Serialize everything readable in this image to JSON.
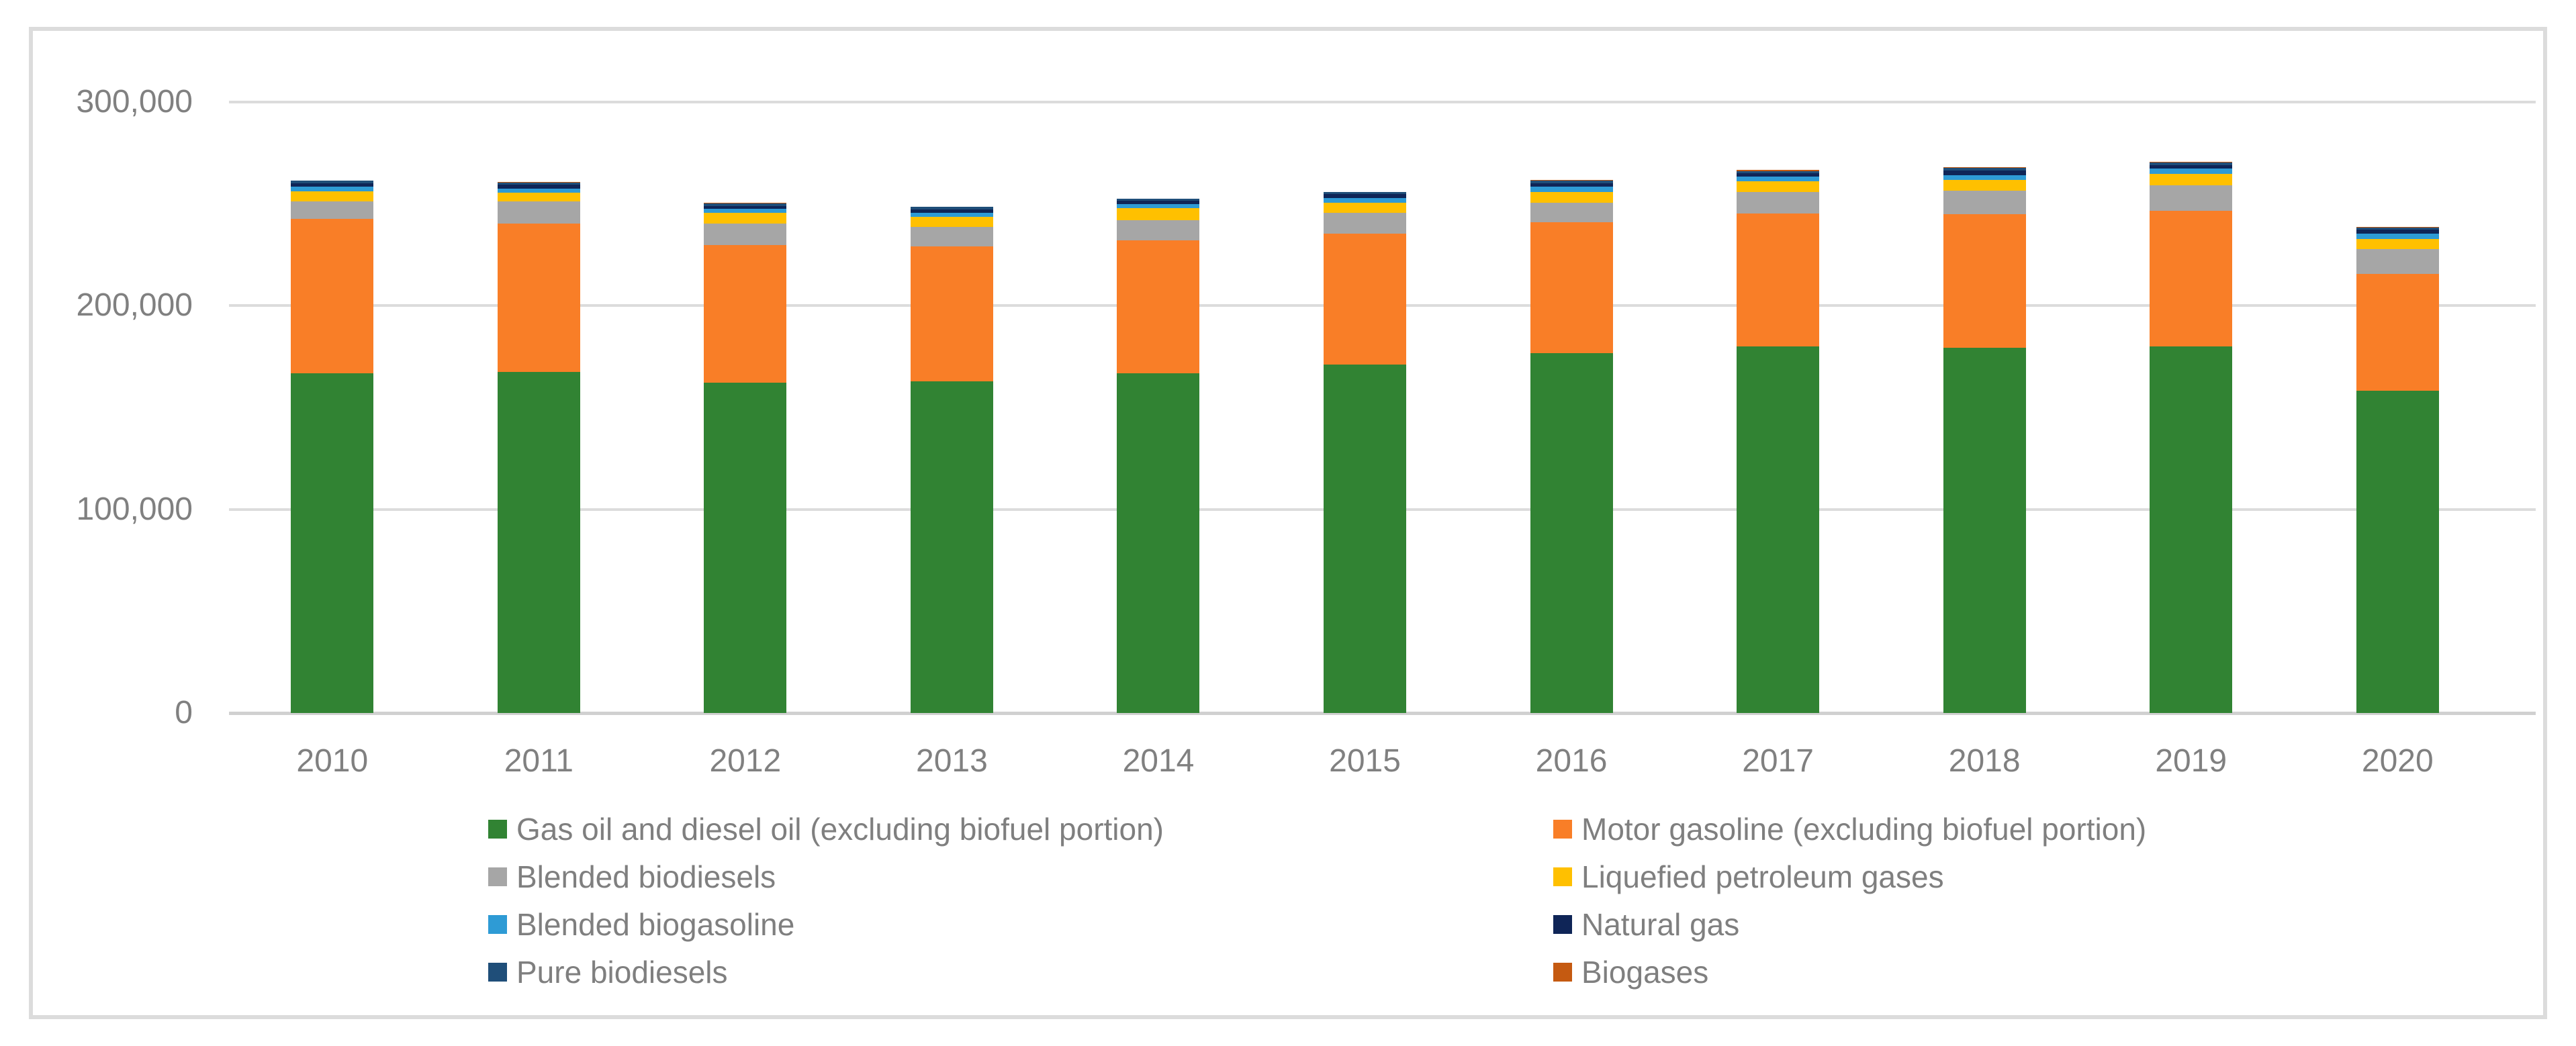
{
  "chart_data": {
    "type": "bar",
    "stacked": true,
    "title": "",
    "xlabel": "",
    "ylabel": "",
    "ylim": [
      0,
      300000
    ],
    "grid": true,
    "legend_position": "bottom-two-columns",
    "y_ticks": [
      {
        "label": "0",
        "value": 0
      },
      {
        "label": "100,000",
        "value": 100000
      },
      {
        "label": "200,000",
        "value": 200000
      },
      {
        "label": "300,000",
        "value": 300000
      }
    ],
    "categories": [
      "2010",
      "2011",
      "2012",
      "2013",
      "2014",
      "2015",
      "2016",
      "2017",
      "2018",
      "2019",
      "2020"
    ],
    "series": [
      {
        "name": "Gas oil and diesel oil (excluding biofuel portion)",
        "color": "#318333",
        "values": [
          166800,
          167500,
          162200,
          162700,
          166800,
          171000,
          176800,
          180100,
          179400,
          179900,
          158100
        ]
      },
      {
        "name": "Motor gasoline (excluding biofuel portion)",
        "color": "#f97e27",
        "values": [
          75800,
          72900,
          67600,
          66500,
          65400,
          64300,
          64300,
          65300,
          65500,
          66600,
          57500
        ]
      },
      {
        "name": "Blended biodiesels",
        "color": "#a6a6a6",
        "values": [
          8700,
          10800,
          10400,
          9400,
          9700,
          10400,
          9500,
          10400,
          11500,
          12600,
          12300
        ]
      },
      {
        "name": "Liquefied petroleum gases",
        "color": "#ffc000",
        "values": [
          4800,
          4200,
          5500,
          5000,
          6000,
          4900,
          5300,
          5300,
          5300,
          5600,
          4900
        ]
      },
      {
        "name": "Blended biogasoline",
        "color": "#2e9bd5",
        "values": [
          2300,
          2000,
          1800,
          1900,
          1900,
          2300,
          2500,
          2300,
          2400,
          2700,
          2700
        ]
      },
      {
        "name": "Natural gas",
        "color": "#0f2557",
        "values": [
          1700,
          2000,
          1300,
          1900,
          1700,
          2000,
          1800,
          1700,
          2200,
          1700,
          1800
        ]
      },
      {
        "name": "Pure biodiesels",
        "color": "#1f4e79",
        "values": [
          1300,
          1000,
          1600,
          1100,
          1000,
          1000,
          1100,
          1100,
          1300,
          1200,
          1100
        ]
      },
      {
        "name": "Biogases",
        "color": "#c55a11",
        "values": [
          100,
          300,
          100,
          100,
          100,
          100,
          400,
          500,
          400,
          400,
          400
        ]
      }
    ],
    "gridline_color": "#dcdcdc",
    "axis_line_color": "#d0d0d0",
    "tick_label_color": "#808080",
    "legend_text_color": "#7f7f7f"
  }
}
